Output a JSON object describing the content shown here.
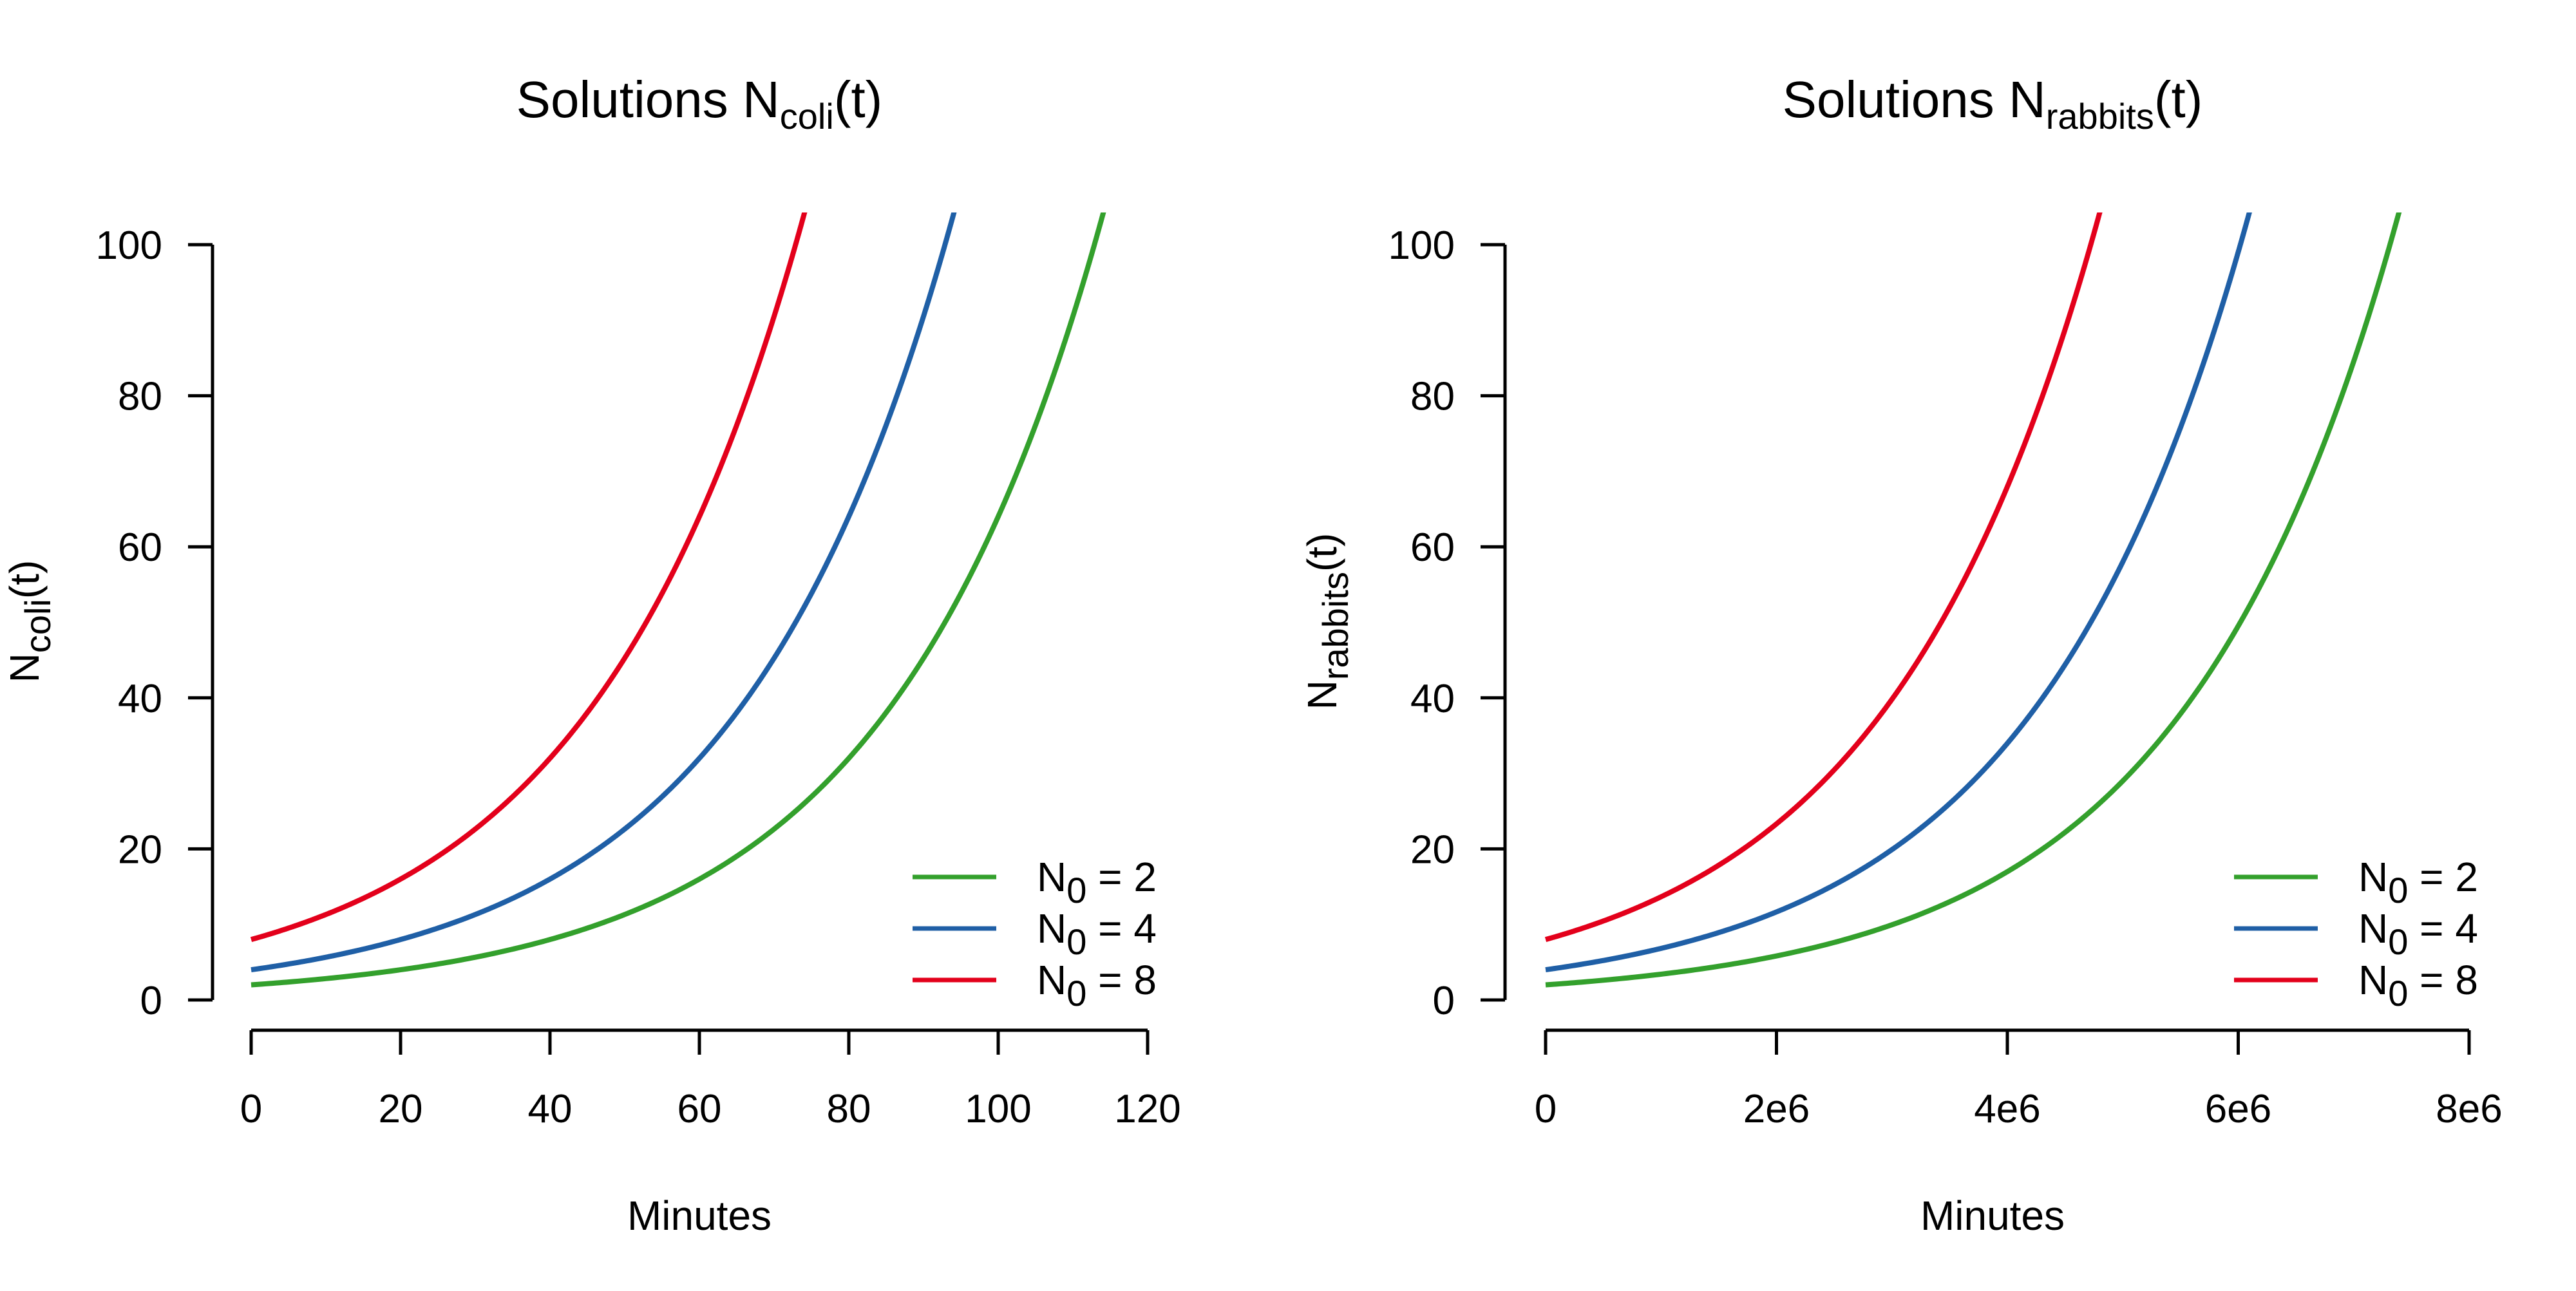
{
  "chart_data": [
    {
      "type": "line",
      "title": {
        "main": "Solutions N",
        "sub": "coli",
        "suffix": "(t)"
      },
      "xlabel": "Minutes",
      "ylabel": {
        "main": "N",
        "sub": "coli",
        "suffix": "(t)"
      },
      "xlim": [
        0,
        120
      ],
      "ylim": [
        0,
        100
      ],
      "xticks": [
        "0",
        "20",
        "40",
        "60",
        "80",
        "100",
        "120"
      ],
      "xtick_values": [
        0,
        20,
        40,
        60,
        80,
        100,
        120
      ],
      "yticks": [
        "0",
        "20",
        "40",
        "60",
        "80",
        "100"
      ],
      "ytick_values": [
        0,
        20,
        40,
        60,
        80,
        100
      ],
      "growth": {
        "doubling_time": 20
      },
      "series": [
        {
          "name": {
            "main": "N",
            "sub": "0",
            "suffix": " = 2"
          },
          "N0": 2,
          "color": "#33a02c",
          "x": [
            0,
            20,
            40,
            60,
            80,
            100,
            114
          ],
          "y": [
            2,
            4,
            8,
            16,
            32,
            64,
            104
          ]
        },
        {
          "name": {
            "main": "N",
            "sub": "0",
            "suffix": " = 4"
          },
          "N0": 4,
          "color": "#1f5fa6",
          "x": [
            0,
            20,
            40,
            60,
            80,
            94
          ],
          "y": [
            4,
            8,
            16,
            32,
            64,
            104
          ]
        },
        {
          "name": {
            "main": "N",
            "sub": "0",
            "suffix": " = 8"
          },
          "N0": 8,
          "color": "#e3001b",
          "x": [
            0,
            20,
            40,
            60,
            74
          ],
          "y": [
            8,
            16,
            32,
            64,
            104
          ]
        }
      ],
      "legend": "bottom-right",
      "grid": false
    },
    {
      "type": "line",
      "title": {
        "main": "Solutions N",
        "sub": "rabbits",
        "suffix": "(t)"
      },
      "xlabel": "Minutes",
      "ylabel": {
        "main": "N",
        "sub": "rabbits",
        "suffix": "(t)"
      },
      "xlim": [
        0,
        8000000
      ],
      "ylim": [
        0,
        100
      ],
      "xticks": [
        "0",
        "2e6",
        "4e6",
        "6e6",
        "8e6"
      ],
      "xtick_values": [
        0,
        2000000,
        4000000,
        6000000,
        8000000
      ],
      "yticks": [
        "0",
        "20",
        "40",
        "60",
        "80",
        "100"
      ],
      "ytick_values": [
        0,
        20,
        40,
        60,
        80,
        100
      ],
      "growth": {
        "doubling_time": 1296000
      },
      "series": [
        {
          "name": {
            "main": "N",
            "sub": "0",
            "suffix": " = 2"
          },
          "N0": 2,
          "color": "#33a02c",
          "x": [
            0,
            2000000,
            4000000,
            6000000,
            7400000
          ],
          "y": [
            2,
            5.8,
            17,
            49,
            104
          ]
        },
        {
          "name": {
            "main": "N",
            "sub": "0",
            "suffix": " = 4"
          },
          "N0": 4,
          "color": "#1f5fa6",
          "x": [
            0,
            2000000,
            4000000,
            6000000,
            6100000
          ],
          "y": [
            4,
            11.6,
            34,
            98,
            104
          ]
        },
        {
          "name": {
            "main": "N",
            "sub": "0",
            "suffix": " = 8"
          },
          "N0": 8,
          "color": "#e3001b",
          "x": [
            0,
            2000000,
            4000000,
            4800000
          ],
          "y": [
            8,
            23,
            68,
            104
          ]
        }
      ],
      "legend": "bottom-right",
      "grid": false
    }
  ]
}
